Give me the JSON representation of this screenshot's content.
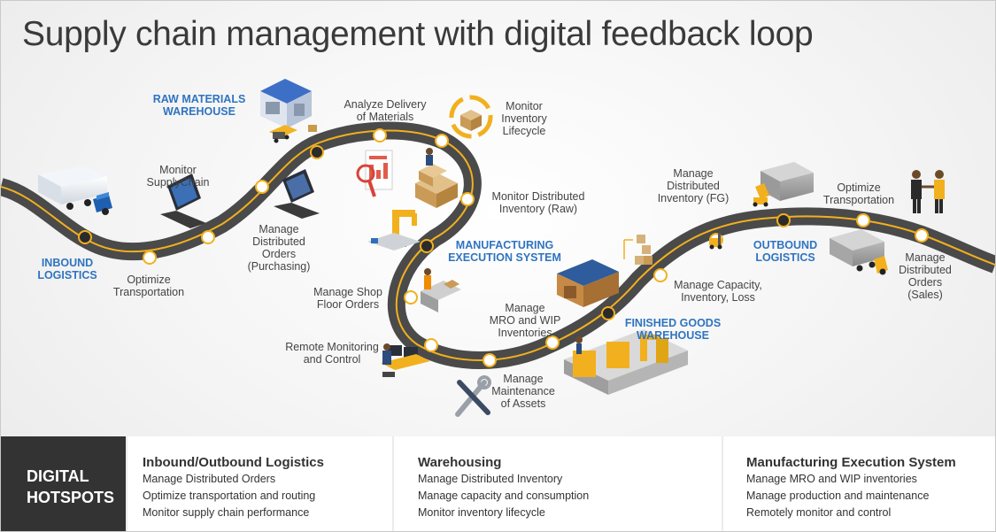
{
  "title": "Supply chain management with digital feedback loop",
  "headings": {
    "raw_materials": "RAW MATERIALS\nWAREHOUSE",
    "inbound": "INBOUND\nLOGISTICS",
    "mes": "MANUFACTURING\nEXECUTION SYSTEM",
    "outbound": "OUTBOUND\nLOGISTICS",
    "finished_goods": "FINISHED GOODS\nWAREHOUSE"
  },
  "labels": {
    "monitor_supplychain": "Monitor\nSupplyChain",
    "optimize_transportation_in": "Optimize\nTransportation",
    "manage_orders_purchasing": "Manage\nDistributed\nOrders\n(Purchasing)",
    "analyze_delivery": "Analyze Delivery\nof Materials",
    "monitor_inventory_lifecycle": "Monitor\nInventory\nLifecycle",
    "monitor_distributed_inventory_raw": "Monitor Distributed\nInventory (Raw)",
    "manage_shop_floor": "Manage Shop\nFloor Orders",
    "remote_monitoring": "Remote Monitoring\nand Control",
    "manage_mro_wip": "Manage\nMRO and WIP\nInventories",
    "manage_maintenance": "Manage\nMaintenance\nof Assets",
    "manage_distributed_inventory_fg": "Manage\nDistributed\nInventory (FG)",
    "manage_capacity": "Manage Capacity,\nInventory, Loss",
    "optimize_transportation_out": "Optimize\nTransportation",
    "manage_orders_sales": "Manage\nDistributed\nOrders\n(Sales)"
  },
  "bottom": {
    "hotspots_label": "DIGITAL\nHOTSPOTS",
    "panels": [
      {
        "title": "Inbound/Outbound Logistics",
        "items": [
          "Manage Distributed Orders",
          "Optimize transportation and routing",
          "Monitor supply chain performance"
        ]
      },
      {
        "title": "Warehousing",
        "items": [
          "Manage Distributed Inventory",
          "Manage capacity and consumption",
          "Monitor inventory lifecycle"
        ]
      },
      {
        "title": "Manufacturing Execution System",
        "items": [
          "Manage MRO and WIP inventories",
          "Manage production and maintenance",
          "Remotely monitor and control"
        ]
      }
    ]
  },
  "colors": {
    "road": "#4a4a4a",
    "road_line": "#f2b01e",
    "heading_blue": "#2f74c0",
    "hotspot_bg": "#333333"
  },
  "icons": [
    "truck-icon",
    "warehouse-icon",
    "laptop-icon",
    "report-icon",
    "boxes-cycle-icon",
    "forklift-icon",
    "robot-arm-icon",
    "factory-line-icon",
    "operator-station-icon",
    "wrench-icon",
    "handshake-icon",
    "delivery-truck-icon"
  ]
}
